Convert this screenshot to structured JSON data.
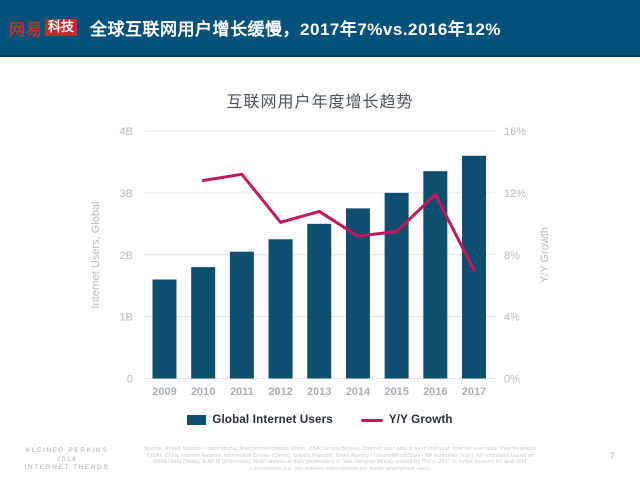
{
  "header": {
    "logo": {
      "part1": "网易",
      "part2": "科技"
    },
    "title": "全球互联网用户增长缓慢，2017年7%vs.2016年12%"
  },
  "chart_data": {
    "type": "bar",
    "title": "互联网用户年度增长趋势",
    "categories": [
      "2009",
      "2010",
      "2011",
      "2012",
      "2013",
      "2014",
      "2015",
      "2016",
      "2017"
    ],
    "series": [
      {
        "name": "Global Internet Users",
        "type": "bar",
        "axis": "left",
        "unit": "B",
        "color": "#0e4f70",
        "values": [
          1.6,
          1.8,
          2.05,
          2.25,
          2.5,
          2.75,
          3.0,
          3.35,
          3.6
        ]
      },
      {
        "name": "Y/Y Growth",
        "type": "line",
        "axis": "right",
        "unit": "%",
        "color": "#c4175b",
        "x": [
          "2010",
          "2011",
          "2012",
          "2013",
          "2014",
          "2015",
          "2016",
          "2017"
        ],
        "values": [
          12.8,
          13.2,
          10.1,
          10.8,
          9.2,
          9.5,
          11.9,
          7.0
        ]
      }
    ],
    "left_axis": {
      "label": "Internet Users, Global",
      "range": [
        0,
        4
      ],
      "tick_values": [
        0,
        1,
        2,
        3,
        4
      ],
      "tick_labels": [
        "0",
        "1B",
        "2B",
        "3B",
        "4B"
      ]
    },
    "right_axis": {
      "label": "Y/Y Growth",
      "range": [
        0,
        16
      ],
      "tick_values": [
        0,
        4,
        8,
        12,
        16
      ],
      "tick_labels": [
        "0%",
        "4%",
        "8%",
        "12%",
        "16%"
      ]
    },
    "grid": true,
    "legend_position": "bottom",
    "colors": {
      "grid": "#e3e6e9",
      "tick_text": "#b6bcc2",
      "axis_title_text": "#b6bcc2",
      "x_tick_text": "#a8b0b8"
    }
  },
  "footer": {
    "brand": [
      "KLEINER PERKINS",
      "2018",
      "INTERNET TRENDS"
    ],
    "source": "Source: United Nations / International Telecommunications Union, USA Census Bureau. Internet user data is as of mid-year. Internet user data: Pew Research (USA), China Internet Network Information Center (China), Islamic Republic News Agency / InternetWorldStats / KP estimates (Iran), KP estimates based on IAMAI data (India), & APJII (Indonesia). Note: Historical data (particularly in Sub-Saharan Africa) revised by ITU in 2017 to better account for dual-SIM subscriptions (i.e. two Internet subscriptions per single smartphone user).",
    "page_number": "7"
  }
}
